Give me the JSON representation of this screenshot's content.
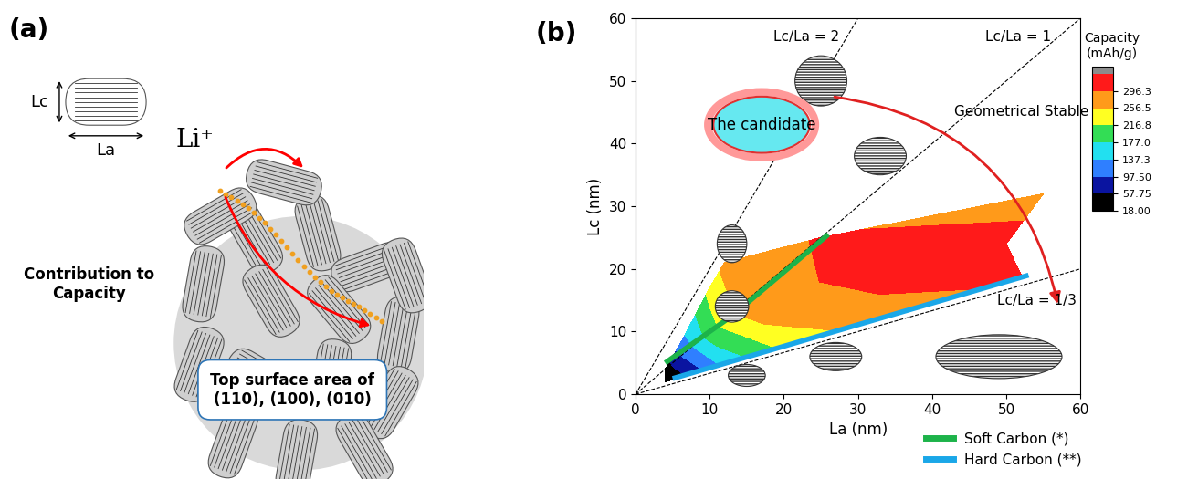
{
  "diagram": {
    "label": "(a)",
    "crystallite": {
      "thickness_label": "Lc",
      "width_label": "La"
    },
    "ion": "Li⁺",
    "caption": "Contribution to\nCapacity",
    "box": "Top surface area of\n(110), (100), (010)"
  },
  "chart_data": {
    "type": "contour",
    "label": "(b)",
    "x_label": "La (nm)",
    "y_label": "Lc (nm)",
    "xlim": [
      0,
      60
    ],
    "ylim": [
      0,
      60
    ],
    "xticks": [
      0,
      10,
      20,
      30,
      40,
      50,
      60
    ],
    "yticks": [
      0,
      10,
      20,
      30,
      40,
      50,
      60
    ],
    "capacity_map": {
      "La": [
        [
          4,
          7,
          12,
          20,
          35,
          52
        ],
        [
          4,
          6.5,
          10,
          15,
          30,
          50
        ],
        [
          4,
          6,
          10,
          12,
          25,
          55
        ]
      ],
      "Lc": [
        [
          2,
          3,
          5,
          8,
          13,
          19
        ],
        [
          3,
          6,
          10,
          14,
          20,
          24
        ],
        [
          4,
          8,
          17,
          21,
          25,
          32
        ]
      ],
      "capacity": [
        [
          18,
          60,
          150,
          230,
          290,
          300
        ],
        [
          25,
          100,
          200,
          280,
          305,
          310
        ],
        [
          30,
          120,
          230,
          270,
          300,
          280
        ]
      ]
    },
    "colorbar": {
      "label": "Capacity\n(mAh/g)",
      "boundaries": [
        18.0,
        57.75,
        97.5,
        137.3,
        177.0,
        216.8,
        256.5,
        296.3,
        336.0
      ],
      "colors": [
        "#000000",
        "#0a14a0",
        "#2f7fff",
        "#22e0f0",
        "#33dd55",
        "#ffff22",
        "#ff9a1a",
        "#ff1a1a",
        "#8c8c8c"
      ],
      "ticks": [
        {
          "value": 18.0,
          "label": "18.00"
        },
        {
          "value": 57.75,
          "label": "57.75"
        },
        {
          "value": 97.5,
          "label": "97.50"
        },
        {
          "value": 137.3,
          "label": "137.3"
        },
        {
          "value": 177.0,
          "label": "177.0"
        },
        {
          "value": 216.8,
          "label": "216.8"
        },
        {
          "value": 256.5,
          "label": "256.5"
        },
        {
          "value": 296.3,
          "label": "296.3"
        }
      ]
    },
    "ratio_lines": [
      {
        "ratio": 2,
        "label": "Lc/La = 2"
      },
      {
        "ratio": 1,
        "label": "Lc/La = 1"
      },
      {
        "ratio": 0.3333,
        "label": "Lc/La = 1/3"
      }
    ],
    "series": [
      {
        "name": "Soft Carbon (*)",
        "color": "#1db34a",
        "x": [
          4,
          13,
          26
        ],
        "values": [
          5,
          12.5,
          25.5
        ]
      },
      {
        "name": "Hard Carbon (**)",
        "color": "#1aa7e8",
        "x": [
          5,
          53
        ],
        "values": [
          2.5,
          19
        ]
      }
    ],
    "legend": "lower right",
    "annotations": [
      "The candidate",
      "Geometrical Stable"
    ]
  }
}
